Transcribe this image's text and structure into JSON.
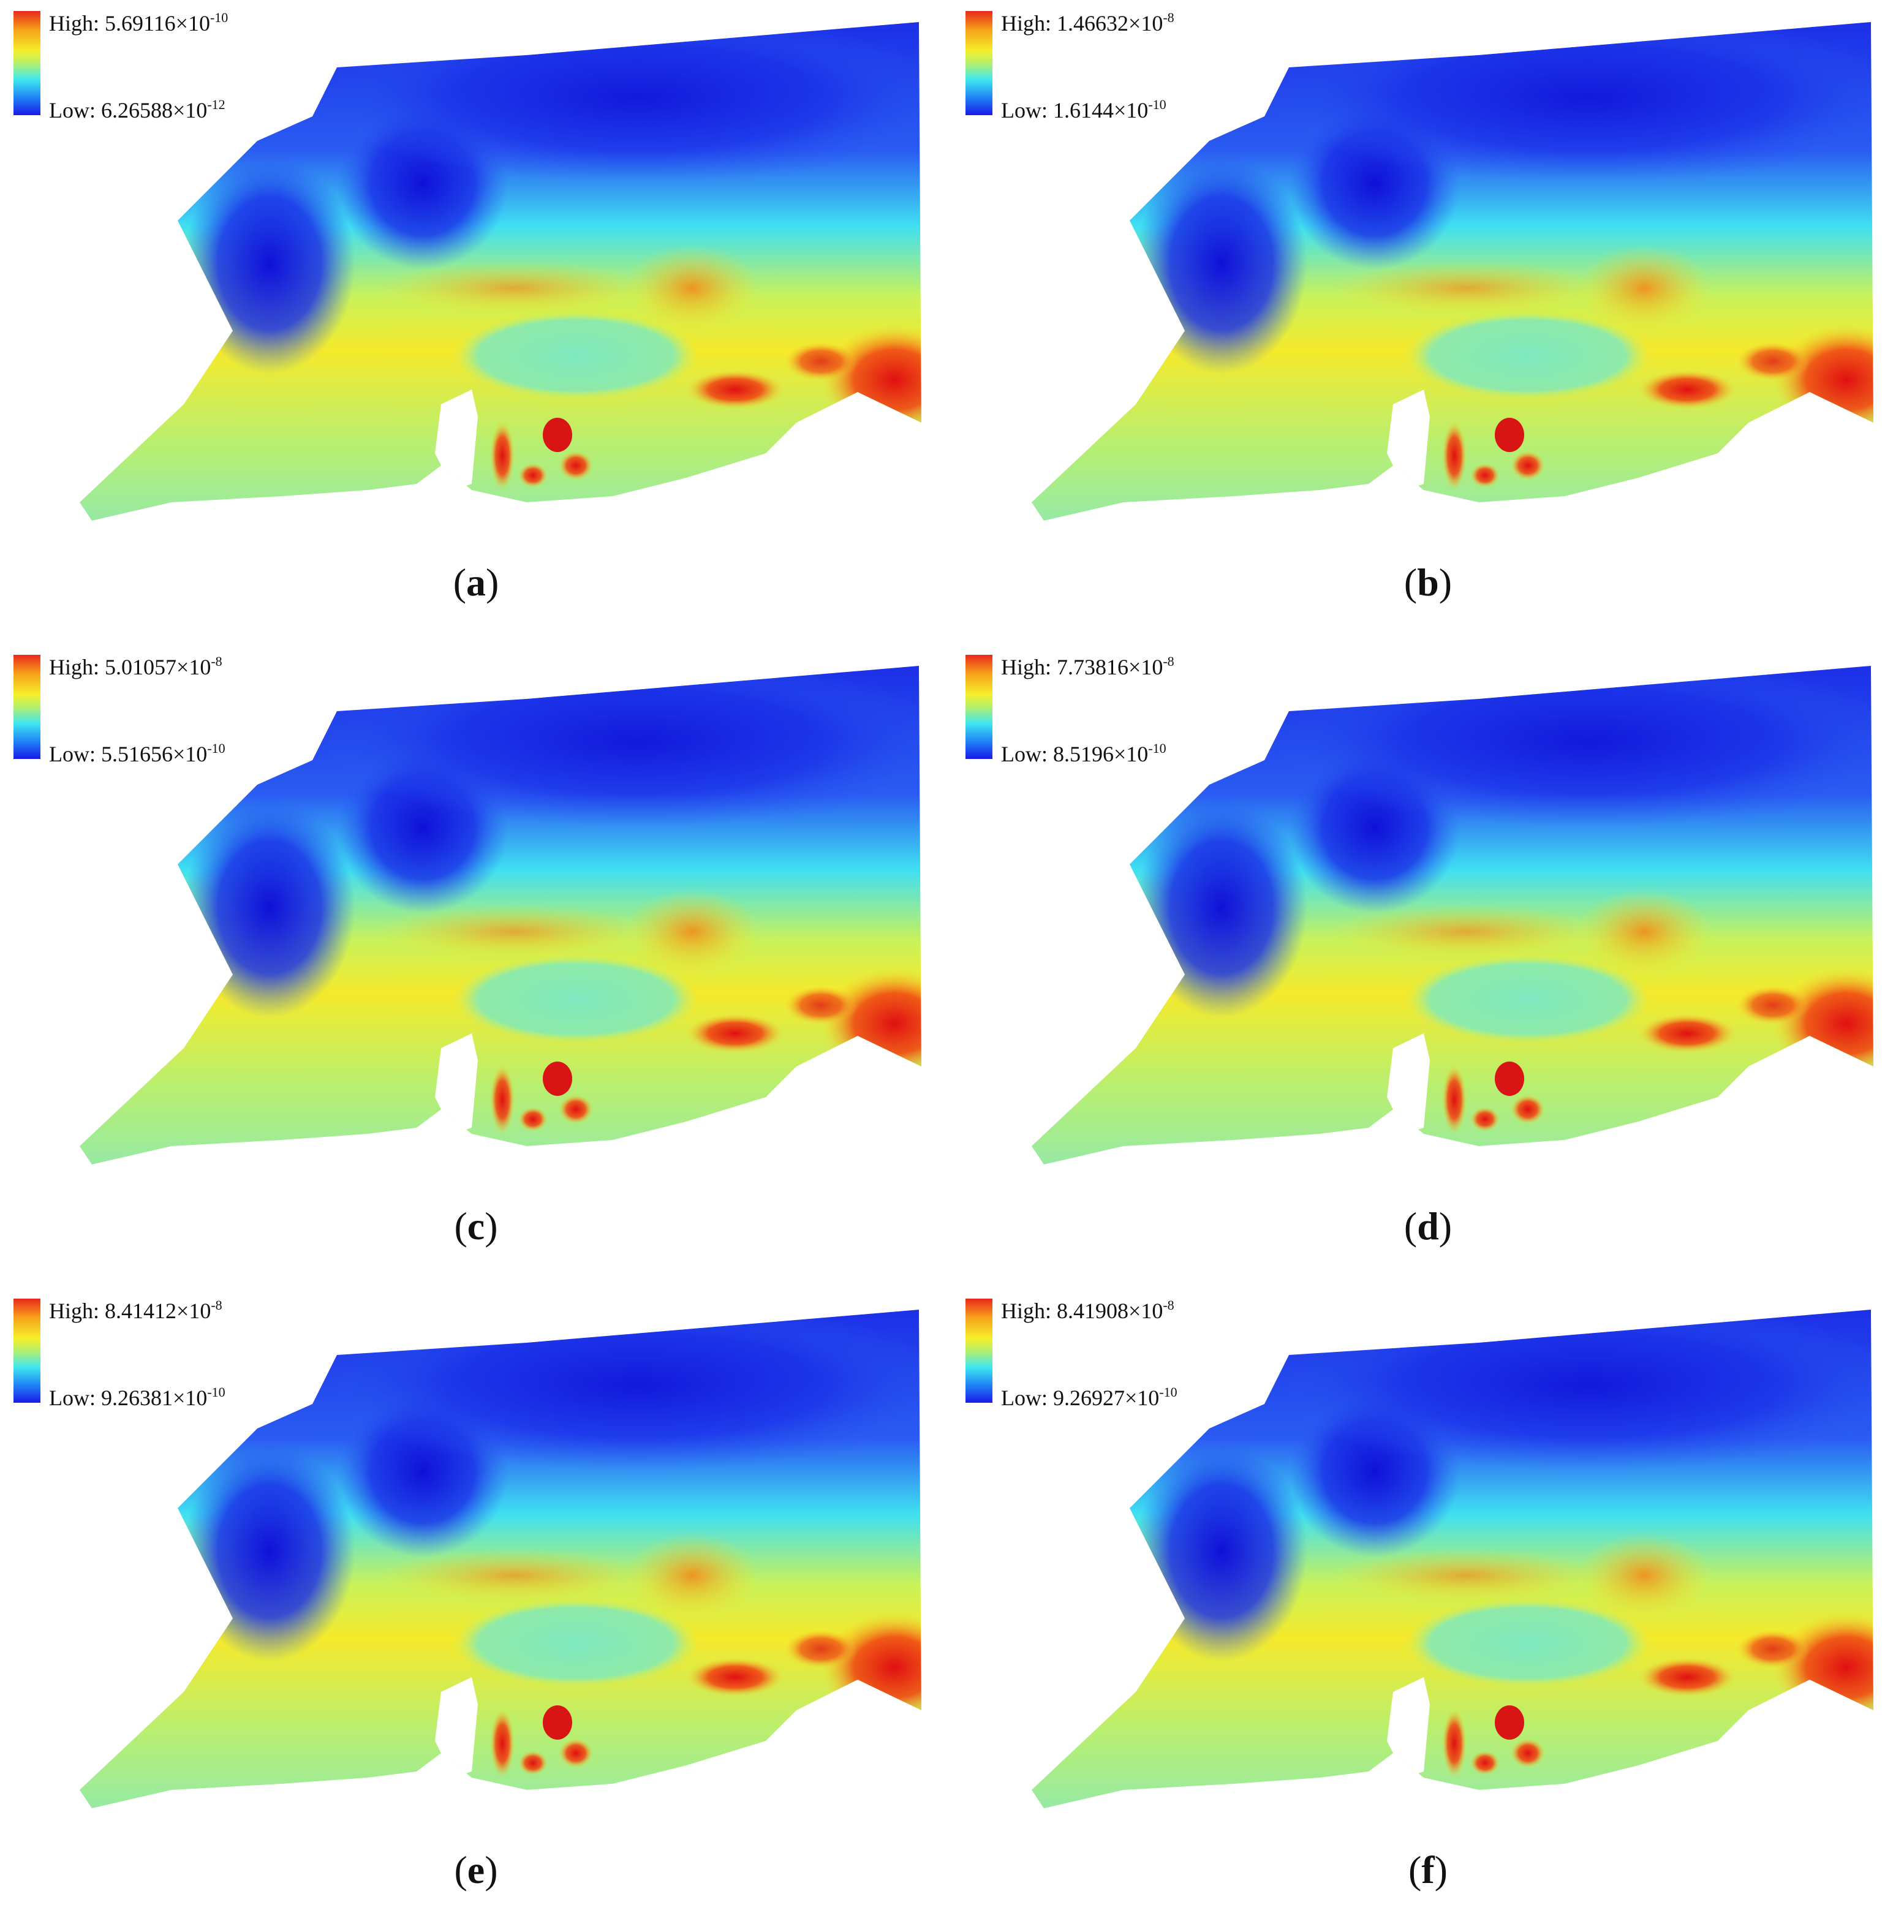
{
  "panels": [
    {
      "label": "a",
      "legend": {
        "high_prefix": "High: ",
        "high_mantissa": "5.69116×10",
        "high_exp": "-10",
        "low_prefix": "Low: ",
        "low_mantissa": "6.26588×10",
        "low_exp": "-12"
      }
    },
    {
      "label": "b",
      "legend": {
        "high_prefix": "High: ",
        "high_mantissa": "1.46632×10",
        "high_exp": "-8",
        "low_prefix": "Low: ",
        "low_mantissa": "1.6144×10",
        "low_exp": "-10"
      }
    },
    {
      "label": "c",
      "legend": {
        "high_prefix": "High: ",
        "high_mantissa": "5.01057×10",
        "high_exp": "-8",
        "low_prefix": "Low: ",
        "low_mantissa": "5.51656×10",
        "low_exp": "-10"
      }
    },
    {
      "label": "d",
      "legend": {
        "high_prefix": "High: ",
        "high_mantissa": "7.73816×10",
        "high_exp": "-8",
        "low_prefix": "Low: ",
        "low_mantissa": "8.5196×10",
        "low_exp": "-10"
      }
    },
    {
      "label": "e",
      "legend": {
        "high_prefix": "High: ",
        "high_mantissa": "8.41412×10",
        "high_exp": "-8",
        "low_prefix": "Low: ",
        "low_mantissa": "9.26381×10",
        "low_exp": "-10"
      }
    },
    {
      "label": "f",
      "legend": {
        "high_prefix": "High: ",
        "high_mantissa": "8.41908×10",
        "high_exp": "-8",
        "low_prefix": "Low: ",
        "low_mantissa": "9.26927×10",
        "low_exp": "-10"
      }
    }
  ],
  "colors": {
    "high": "#e8281a",
    "orange": "#f7a11a",
    "yellow": "#f5ef2a",
    "green": "#8ef08a",
    "cyan": "#3ee8f0",
    "blue_mid": "#1e7ef5",
    "low": "#1a1ae8"
  }
}
